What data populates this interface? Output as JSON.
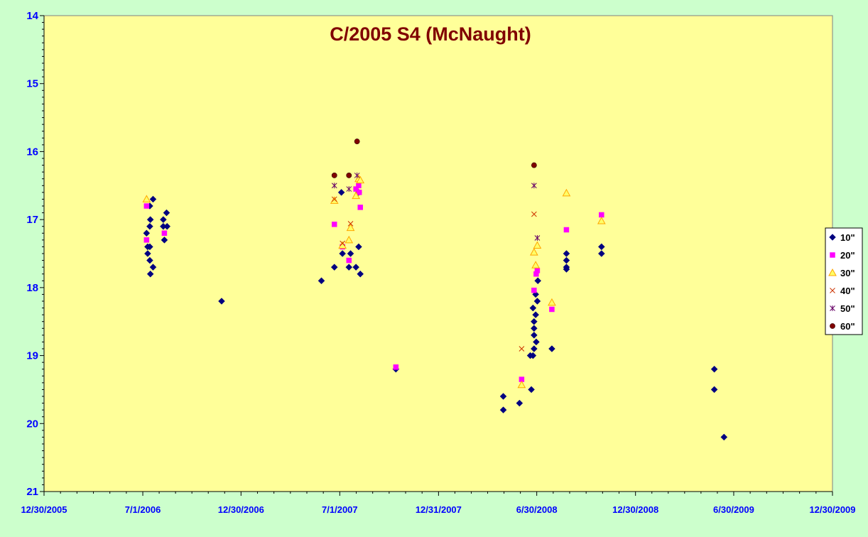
{
  "chart_data": {
    "type": "scatter",
    "title": "C/2005 S4 (McNaught)",
    "xlabel": "",
    "ylabel": "",
    "x_axis": {
      "type": "date",
      "range": [
        "2005-12-30",
        "2009-12-30"
      ],
      "tick_labels": [
        "12/30/2005",
        "7/1/2006",
        "12/30/2006",
        "7/1/2007",
        "12/31/2007",
        "6/30/2008",
        "12/30/2008",
        "6/30/2009",
        "12/30/2009"
      ]
    },
    "y_axis": {
      "range": [
        14,
        21
      ],
      "reversed": true,
      "tick_labels": [
        "14",
        "15",
        "16",
        "17",
        "18",
        "19",
        "20",
        "21"
      ]
    },
    "grid": false,
    "legend_position": "right",
    "colors": {
      "plot_background": "#ffff99",
      "page_background": "#ccffcc",
      "axis_text": "#0000ff",
      "title": "#800000"
    },
    "series": [
      {
        "name": "10\"",
        "marker": "diamond",
        "color": "#000080",
        "points": [
          [
            "2006-07-20",
            16.7
          ],
          [
            "2006-07-14",
            16.8
          ],
          [
            "2006-07-15",
            17.0
          ],
          [
            "2006-07-14",
            17.1
          ],
          [
            "2006-07-08",
            17.2
          ],
          [
            "2006-07-10",
            17.4
          ],
          [
            "2006-07-14",
            17.4
          ],
          [
            "2006-07-10",
            17.5
          ],
          [
            "2006-07-14",
            17.6
          ],
          [
            "2006-07-20",
            17.7
          ],
          [
            "2006-07-15",
            17.8
          ],
          [
            "2006-08-14",
            16.9
          ],
          [
            "2006-08-08",
            17.0
          ],
          [
            "2006-08-08",
            17.1
          ],
          [
            "2006-08-15",
            17.1
          ],
          [
            "2006-08-10",
            17.3
          ],
          [
            "2006-11-24",
            18.2
          ],
          [
            "2007-05-28",
            17.9
          ],
          [
            "2007-06-21",
            17.7
          ],
          [
            "2007-07-04",
            16.6
          ],
          [
            "2007-07-06",
            17.5
          ],
          [
            "2007-07-21",
            17.5
          ],
          [
            "2007-07-18",
            17.7
          ],
          [
            "2007-07-31",
            17.7
          ],
          [
            "2007-08-05",
            17.4
          ],
          [
            "2007-08-08",
            17.8
          ],
          [
            "2007-08-05",
            16.6
          ],
          [
            "2007-10-13",
            19.2
          ],
          [
            "2008-04-29",
            19.6
          ],
          [
            "2008-04-29",
            19.8
          ],
          [
            "2008-05-29",
            19.7
          ],
          [
            "2008-06-18",
            19.0
          ],
          [
            "2008-06-20",
            19.5
          ],
          [
            "2008-06-23",
            19.0
          ],
          [
            "2008-06-23",
            18.3
          ],
          [
            "2008-06-25",
            18.5
          ],
          [
            "2008-06-25",
            18.6
          ],
          [
            "2008-06-25",
            18.7
          ],
          [
            "2008-06-25",
            18.9
          ],
          [
            "2008-06-28",
            18.4
          ],
          [
            "2008-06-28",
            18.1
          ],
          [
            "2008-06-29",
            18.8
          ],
          [
            "2008-07-01",
            18.2
          ],
          [
            "2008-07-02",
            17.9
          ],
          [
            "2008-07-28",
            18.9
          ],
          [
            "2008-08-24",
            17.5
          ],
          [
            "2008-08-24",
            17.6
          ],
          [
            "2008-08-24",
            17.7
          ],
          [
            "2008-08-24",
            17.73
          ],
          [
            "2008-10-28",
            17.4
          ],
          [
            "2008-10-28",
            17.5
          ],
          [
            "2009-05-25",
            19.2
          ],
          [
            "2009-05-25",
            19.5
          ],
          [
            "2009-06-12",
            20.2
          ]
        ]
      },
      {
        "name": "20\"",
        "marker": "square",
        "color": "#ff00ff",
        "points": [
          [
            "2006-07-08",
            16.8
          ],
          [
            "2006-07-08",
            17.3
          ],
          [
            "2006-08-10",
            17.2
          ],
          [
            "2007-06-21",
            17.07
          ],
          [
            "2007-07-06",
            17.4
          ],
          [
            "2007-07-18",
            17.6
          ],
          [
            "2007-07-31",
            16.55
          ],
          [
            "2007-08-05",
            16.5
          ],
          [
            "2007-08-06",
            16.6
          ],
          [
            "2007-08-08",
            16.82
          ],
          [
            "2007-10-13",
            19.17
          ],
          [
            "2008-06-02",
            19.35
          ],
          [
            "2008-06-25",
            18.04
          ],
          [
            "2008-06-29",
            17.8
          ],
          [
            "2008-07-01",
            17.75
          ],
          [
            "2008-07-28",
            18.32
          ],
          [
            "2008-08-24",
            17.15
          ],
          [
            "2008-10-28",
            16.93
          ]
        ]
      },
      {
        "name": "30\"",
        "marker": "triangle",
        "color": "#ffa500",
        "points": [
          [
            "2006-07-08",
            16.7
          ],
          [
            "2007-06-21",
            16.72
          ],
          [
            "2007-07-06",
            17.38
          ],
          [
            "2007-07-18",
            17.3
          ],
          [
            "2007-07-21",
            17.12
          ],
          [
            "2007-07-31",
            16.65
          ],
          [
            "2007-08-05",
            16.4
          ],
          [
            "2007-08-08",
            16.42
          ],
          [
            "2008-06-02",
            19.43
          ],
          [
            "2008-06-25",
            17.48
          ],
          [
            "2008-06-28",
            17.67
          ],
          [
            "2008-07-01",
            17.38
          ],
          [
            "2008-07-28",
            18.22
          ],
          [
            "2008-08-24",
            16.61
          ],
          [
            "2008-10-28",
            17.02
          ]
        ]
      },
      {
        "name": "40\"",
        "marker": "x",
        "color": "#cc3300",
        "points": [
          [
            "2007-06-21",
            16.7
          ],
          [
            "2007-07-06",
            17.35
          ],
          [
            "2007-07-21",
            17.06
          ],
          [
            "2008-06-02",
            18.9
          ],
          [
            "2008-06-25",
            16.92
          ]
        ]
      },
      {
        "name": "50\"",
        "marker": "asterisk",
        "color": "#660066",
        "points": [
          [
            "2007-06-21",
            16.5
          ],
          [
            "2007-07-18",
            16.55
          ],
          [
            "2007-08-02",
            16.35
          ],
          [
            "2008-06-25",
            16.5
          ],
          [
            "2008-07-01",
            17.27
          ]
        ]
      },
      {
        "name": "60\"",
        "marker": "circle",
        "color": "#800000",
        "points": [
          [
            "2007-06-21",
            16.35
          ],
          [
            "2007-07-18",
            16.35
          ],
          [
            "2007-08-02",
            15.85
          ],
          [
            "2008-06-25",
            16.2
          ]
        ]
      }
    ]
  }
}
